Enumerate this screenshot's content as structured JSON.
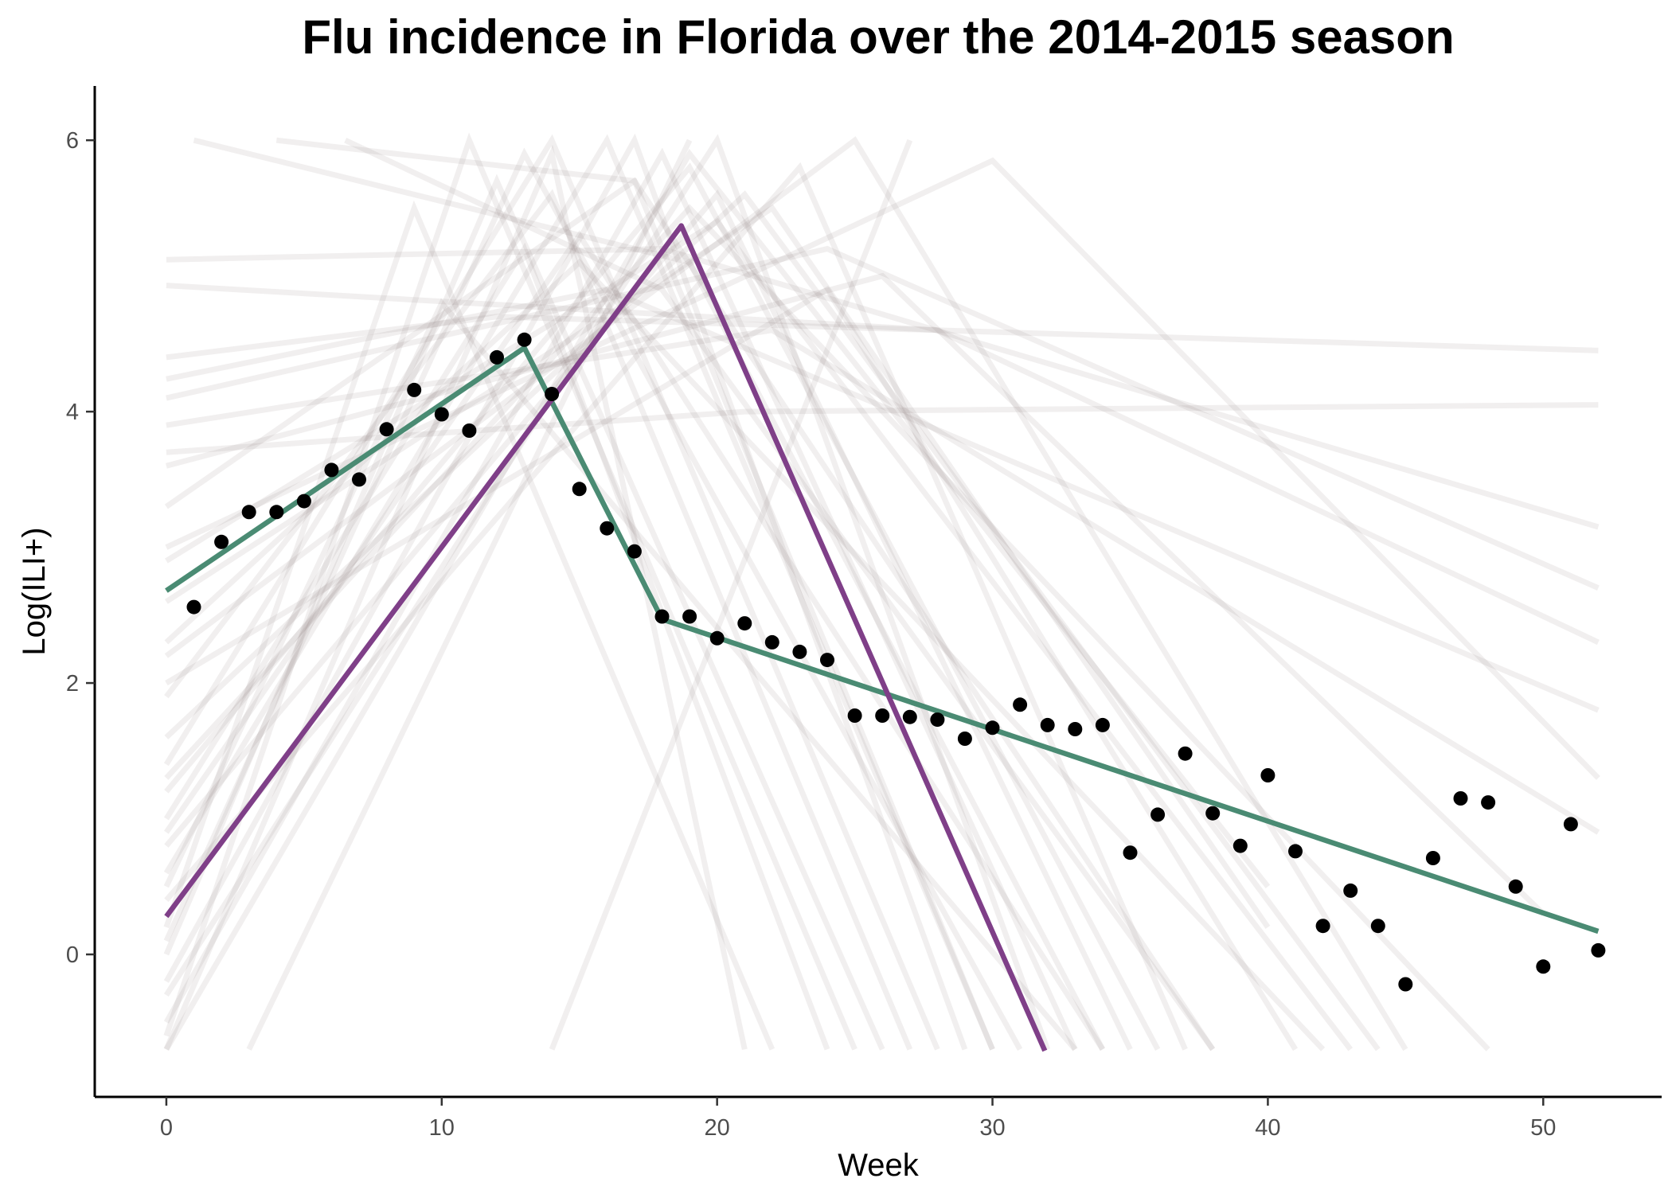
{
  "chart_data": {
    "type": "line",
    "title": "Flu incidence in Florida over the 2014-2015 season",
    "xlabel": "Week",
    "ylabel": "Log(ILI+)",
    "xlim": [
      -2.6,
      54.3
    ],
    "ylim": [
      -1.05,
      6.4
    ],
    "x_ticks": [
      0,
      10,
      20,
      30,
      40,
      50
    ],
    "y_ticks": [
      0,
      2,
      4,
      6
    ],
    "grid": false,
    "legend": "none",
    "observed_points": {
      "x": [
        1,
        2,
        3,
        4,
        5,
        6,
        7,
        8,
        9,
        10,
        11,
        12,
        13,
        14,
        15,
        16,
        17,
        18,
        19,
        20,
        21,
        22,
        23,
        24,
        25,
        26,
        27,
        28,
        29,
        30,
        31,
        32,
        33,
        34,
        35,
        36,
        37,
        38,
        39,
        40,
        41,
        42,
        43,
        44,
        45,
        46,
        47,
        48,
        49,
        50,
        51,
        52
      ],
      "y": [
        2.56,
        3.04,
        3.26,
        3.26,
        3.34,
        3.57,
        3.5,
        3.87,
        4.16,
        3.98,
        3.86,
        4.4,
        4.53,
        4.13,
        3.43,
        3.14,
        2.97,
        2.49,
        2.49,
        2.33,
        2.44,
        2.3,
        2.23,
        2.17,
        1.76,
        1.76,
        1.75,
        1.73,
        1.59,
        1.67,
        1.84,
        1.69,
        1.66,
        1.69,
        0.75,
        1.03,
        1.48,
        1.04,
        0.8,
        1.32,
        0.76,
        0.21,
        0.47,
        0.21,
        -0.22,
        0.71,
        1.15,
        1.12,
        0.5,
        -0.09,
        0.96,
        0.03
      ]
    },
    "series": [
      {
        "color": "#4a8b73",
        "x": [
          0,
          13,
          18,
          52
        ],
        "y": [
          2.68,
          4.47,
          2.47,
          0.17
        ]
      },
      {
        "color": "#7f3f88",
        "x": [
          0,
          18.7,
          31.9
        ],
        "y": [
          0.28,
          5.37,
          -0.71
        ]
      }
    ],
    "simulated_curves": [
      {
        "x": [
          0,
          13,
          31
        ],
        "y": [
          0.1,
          5.9,
          -0.7
        ]
      },
      {
        "x": [
          0,
          16,
          30
        ],
        "y": [
          0.6,
          6.0,
          -0.7
        ]
      },
      {
        "x": [
          0,
          19,
          36
        ],
        "y": [
          1.2,
          5.8,
          -0.7
        ]
      },
      {
        "x": [
          0,
          20,
          32
        ],
        "y": [
          -0.3,
          6.0,
          -0.7
        ]
      },
      {
        "x": [
          0,
          14,
          27
        ],
        "y": [
          1.9,
          5.6,
          -0.7
        ]
      },
      {
        "x": [
          0,
          22,
          40
        ],
        "y": [
          2.6,
          5.5,
          0.2
        ]
      },
      {
        "x": [
          0,
          11,
          25
        ],
        "y": [
          -0.6,
          6.0,
          -0.7
        ]
      },
      {
        "x": [
          0,
          17,
          38
        ],
        "y": [
          3.3,
          5.7,
          -0.7
        ]
      },
      {
        "x": [
          0,
          24,
          52
        ],
        "y": [
          4.1,
          5.2,
          2.7
        ]
      },
      {
        "x": [
          0,
          15,
          34
        ],
        "y": [
          0.9,
          5.3,
          -0.7
        ]
      },
      {
        "x": [
          0,
          9,
          22
        ],
        "y": [
          0.2,
          5.5,
          -0.7
        ]
      },
      {
        "x": [
          0,
          25,
          45
        ],
        "y": [
          2.2,
          6.0,
          -0.7
        ]
      },
      {
        "x": [
          0,
          12,
          52
        ],
        "y": [
          4.4,
          4.7,
          4.45
        ]
      },
      {
        "x": [
          0,
          21,
          52
        ],
        "y": [
          3.7,
          4.0,
          4.05
        ]
      },
      {
        "x": [
          0,
          18,
          52
        ],
        "y": [
          5.12,
          5.2,
          3.15
        ]
      },
      {
        "x": [
          0,
          28,
          52
        ],
        "y": [
          4.93,
          4.6,
          2.3
        ]
      },
      {
        "x": [
          0,
          19,
          40
        ],
        "y": [
          -0.7,
          5.9,
          0.5
        ]
      },
      {
        "x": [
          0,
          14,
          28
        ],
        "y": [
          1.4,
          6.0,
          -0.7
        ]
      },
      {
        "x": [
          0,
          20,
          43
        ],
        "y": [
          2.9,
          5.4,
          -0.7
        ]
      },
      {
        "x": [
          0,
          23,
          37
        ],
        "y": [
          0.4,
          5.8,
          -0.7
        ]
      },
      {
        "x": [
          0,
          17,
          29
        ],
        "y": [
          -0.2,
          6.0,
          -0.7
        ]
      },
      {
        "x": [
          0,
          13,
          24
        ],
        "y": [
          1.0,
          5.2,
          -0.7
        ]
      },
      {
        "x": [
          0,
          26,
          50
        ],
        "y": [
          3.6,
          5.0,
          0.3
        ]
      },
      {
        "x": [
          0,
          16,
          52
        ],
        "y": [
          4.24,
          4.9,
          1.8
        ]
      },
      {
        "x": [
          0,
          10,
          33
        ],
        "y": [
          0.5,
          4.8,
          -0.7
        ]
      },
      {
        "x": [
          0,
          21,
          44
        ],
        "y": [
          1.6,
          5.6,
          -0.7
        ]
      },
      {
        "x": [
          0,
          18,
          33
        ],
        "y": [
          -0.5,
          5.9,
          -0.7
        ]
      },
      {
        "x": [
          0,
          15,
          42
        ],
        "y": [
          2.3,
          5.1,
          -0.7
        ]
      },
      {
        "x": [
          0,
          30,
          52
        ],
        "y": [
          3.0,
          5.85,
          1.3
        ]
      },
      {
        "x": [
          0,
          22,
          52
        ],
        "y": [
          3.9,
          4.6,
          0.9
        ]
      },
      {
        "x": [
          0,
          12,
          26
        ],
        "y": [
          0.0,
          5.7,
          -0.7
        ]
      },
      {
        "x": [
          0,
          19,
          48
        ],
        "y": [
          1.3,
          5.5,
          -0.7
        ]
      },
      {
        "x": [
          1,
          19,
          34
        ],
        "y": [
          6.0,
          5.1,
          -0.7
        ]
      },
      {
        "x": [
          4,
          17,
          30
        ],
        "y": [
          6.0,
          5.7,
          -0.7
        ]
      },
      {
        "x": [
          6.5,
          18,
          38
        ],
        "y": [
          6.0,
          4.9,
          -0.7
        ]
      },
      {
        "x": [
          0,
          14,
          21
        ],
        "y": [
          -0.7,
          5.9,
          -0.7
        ]
      },
      {
        "x": [
          3,
          19
        ],
        "y": [
          -0.7,
          6.0
        ]
      },
      {
        "x": [
          14,
          27
        ],
        "y": [
          -0.7,
          6.0
        ]
      },
      {
        "x": [
          0,
          24,
          41
        ],
        "y": [
          2.0,
          4.9,
          -0.7
        ]
      },
      {
        "x": [
          0,
          20,
          35
        ],
        "y": [
          0.8,
          5.6,
          -0.7
        ]
      }
    ]
  }
}
